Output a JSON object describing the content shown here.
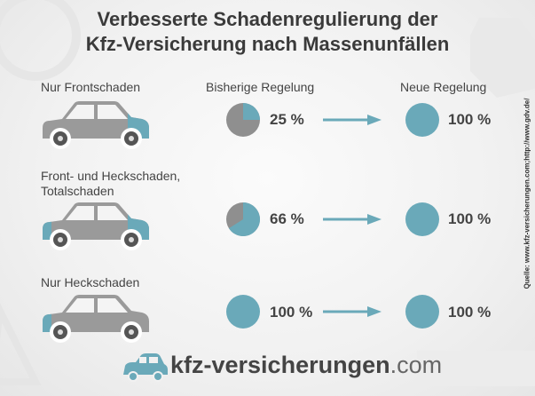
{
  "title_line1": "Verbesserte Schadenregulierung der",
  "title_line2": "Kfz-Versicherung nach Massenunfällen",
  "columns": {
    "old": "Bisherige Regelung",
    "new": "Neue Regelung"
  },
  "colors": {
    "accent": "#6aa9b9",
    "car_body": "#9a9a9a",
    "pie_rest": "#8f8f8f",
    "arrow": "#6aa9b9"
  },
  "chart_data": {
    "type": "pie",
    "categories": [
      "Nur Frontschaden",
      "Front- und Heckschaden, Totalschaden",
      "Nur Heckschaden"
    ],
    "series": [
      {
        "name": "Bisherige Regelung",
        "values": [
          25,
          66,
          100
        ],
        "labels": [
          "25 %",
          "66 %",
          "100 %"
        ]
      },
      {
        "name": "Neue Regelung",
        "values": [
          100,
          100,
          100
        ],
        "labels": [
          "100 %",
          "100 %",
          "100 %"
        ]
      }
    ]
  },
  "rows": [
    {
      "label_line1": "Nur Frontschaden",
      "label_line2": "",
      "damage": "front"
    },
    {
      "label_line1": "Front- und Heckschaden,",
      "label_line2": "Totalschaden",
      "damage": "both"
    },
    {
      "label_line1": "Nur Heckschaden",
      "label_line2": "",
      "damage": "rear"
    }
  ],
  "source": "Quelle: www.kfz-versicherungen.com;http://www.gdv.de/",
  "brand": {
    "name": "kfz-versicherungen",
    "tld": ".com",
    "icon": "car-logo-icon"
  }
}
